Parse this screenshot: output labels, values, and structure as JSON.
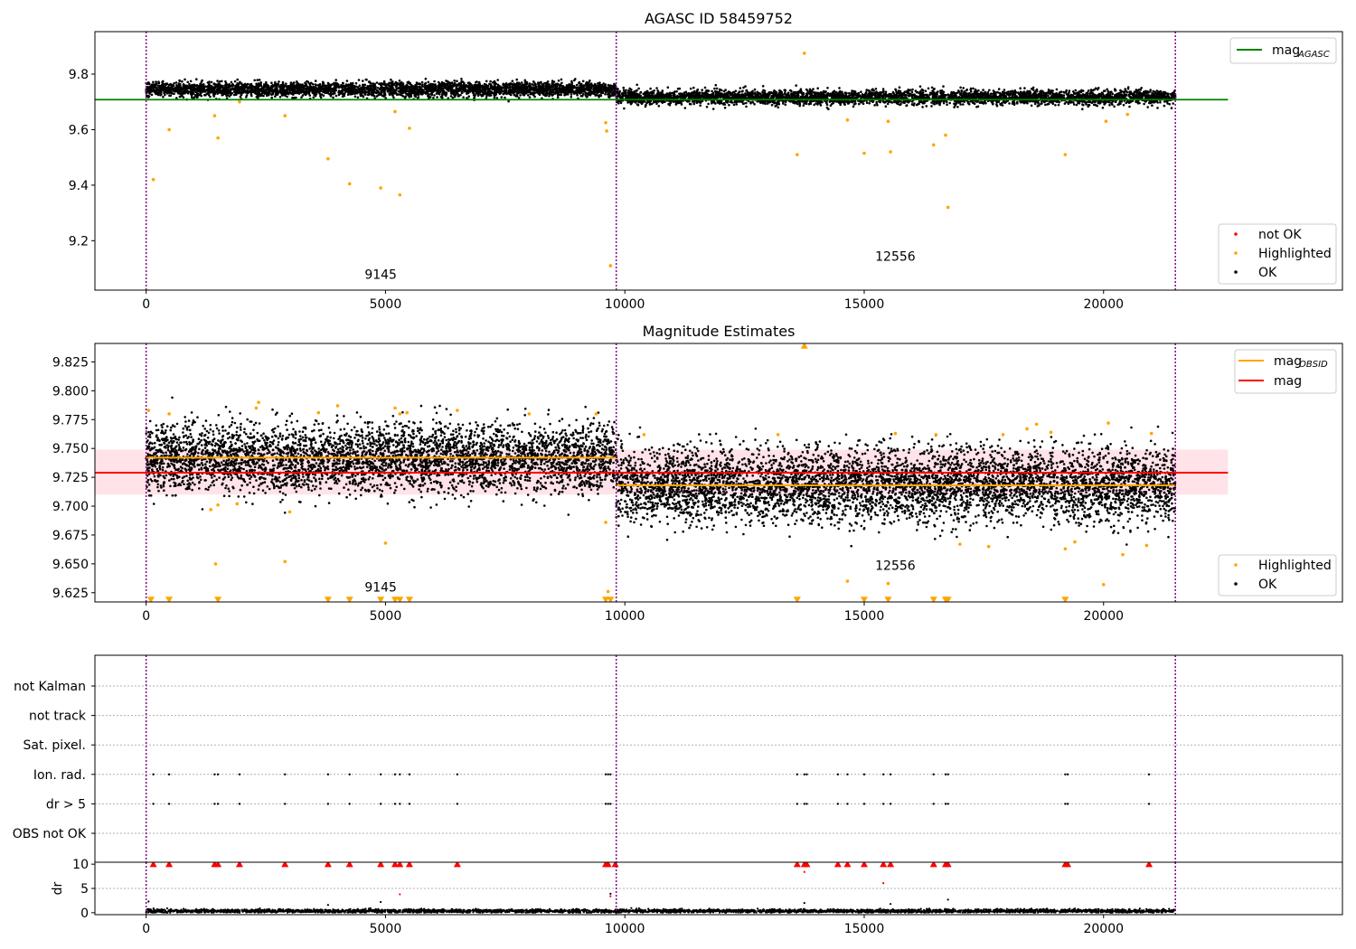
{
  "chart_data": [
    {
      "type": "scatter",
      "title": "AGASC ID 58459752",
      "xlabel": "",
      "ylabel": "",
      "xlim": [
        -1070,
        24990
      ],
      "ylim": [
        9.022,
        9.953
      ],
      "xticks": [
        0,
        5000,
        10000,
        15000,
        20000
      ],
      "xtick_labels": [
        "0",
        "5000",
        "10000",
        "15000",
        "20000"
      ],
      "yticks": [
        9.2,
        9.4,
        9.6,
        9.8
      ],
      "ytick_labels": [
        "9.2",
        "9.4",
        "9.6",
        "9.8"
      ],
      "obsid_boundaries": [
        0,
        9820,
        21500
      ],
      "obsid_labels": [
        {
          "text": "9145",
          "x": 4900,
          "y": 9.062
        },
        {
          "text": "12556",
          "x": 15650,
          "y": 9.128
        }
      ],
      "lines": [
        {
          "name": "mag_AGASC",
          "color": "#008000",
          "x": [
            -1070,
            22600
          ],
          "y": [
            9.708,
            9.708
          ]
        }
      ],
      "series": [
        {
          "name": "OK",
          "color": "#000000",
          "segments": [
            {
              "x": [
                0,
                9820
              ],
              "mean": 9.745,
              "spread": 0.022
            },
            {
              "x": [
                9820,
                21500
              ],
              "mean": 9.717,
              "spread": 0.022
            }
          ]
        },
        {
          "name": "Highlighted",
          "color": "#ffa500",
          "points": [
            [
              150,
              9.42
            ],
            [
              480,
              9.6
            ],
            [
              1430,
              9.65
            ],
            [
              1500,
              9.57
            ],
            [
              1950,
              9.7
            ],
            [
              2900,
              9.65
            ],
            [
              3800,
              9.495
            ],
            [
              4250,
              9.405
            ],
            [
              4900,
              9.39
            ],
            [
              5200,
              9.665
            ],
            [
              5300,
              9.365
            ],
            [
              5500,
              9.605
            ],
            [
              9600,
              9.625
            ],
            [
              9620,
              9.595
            ],
            [
              9700,
              9.11
            ],
            [
              13600,
              9.51
            ],
            [
              13750,
              9.875
            ],
            [
              14650,
              9.635
            ],
            [
              15000,
              9.515
            ],
            [
              15500,
              9.63
            ],
            [
              15550,
              9.52
            ],
            [
              16450,
              9.545
            ],
            [
              16700,
              9.58
            ],
            [
              16750,
              9.32
            ],
            [
              19200,
              9.51
            ],
            [
              20050,
              9.63
            ],
            [
              20500,
              9.655
            ]
          ]
        },
        {
          "name": "not OK",
          "color": "#ff0000",
          "points": []
        }
      ],
      "legend": [
        {
          "label": "mag",
          "sub": "AGASC",
          "kind": "line",
          "color": "#008000",
          "position": "top-right"
        },
        {
          "label": "not OK",
          "kind": "point",
          "color": "#ff0000",
          "position": "bottom-right"
        },
        {
          "label": "Highlighted",
          "kind": "point",
          "color": "#ffa500",
          "position": "bottom-right"
        },
        {
          "label": "OK",
          "kind": "point",
          "color": "#000000",
          "position": "bottom-right"
        }
      ]
    },
    {
      "type": "scatter",
      "title": "Magnitude Estimates",
      "xlabel": "",
      "ylabel": "",
      "xlim": [
        -1070,
        24990
      ],
      "ylim": [
        9.617,
        9.841
      ],
      "xticks": [
        0,
        5000,
        10000,
        15000,
        20000
      ],
      "xtick_labels": [
        "0",
        "5000",
        "10000",
        "15000",
        "20000"
      ],
      "yticks": [
        9.625,
        9.65,
        9.675,
        9.7,
        9.725,
        9.75,
        9.775,
        9.8,
        9.825
      ],
      "ytick_labels": [
        "9.625",
        "9.650",
        "9.675",
        "9.700",
        "9.725",
        "9.750",
        "9.775",
        "9.800",
        "9.825"
      ],
      "obsid_boundaries": [
        0,
        9820,
        21500
      ],
      "obsid_labels": [
        {
          "text": "9145",
          "x": 4900,
          "y": 9.626
        },
        {
          "text": "12556",
          "x": 15650,
          "y": 9.645
        }
      ],
      "band": {
        "color": "#ffc0cb",
        "opacity": 0.45,
        "x": [
          -1070,
          22600
        ],
        "y": [
          9.71,
          9.749
        ]
      },
      "lines": [
        {
          "name": "mag",
          "color": "#ff0000",
          "x": [
            -1070,
            22600
          ],
          "y": [
            9.729,
            9.729
          ]
        },
        {
          "name": "mag_OBSID 9145",
          "color": "#ffa500",
          "x": [
            0,
            9820
          ],
          "y": [
            9.742,
            9.742
          ]
        },
        {
          "name": "mag_OBSID 12556",
          "color": "#ffa500",
          "x": [
            9820,
            21500
          ],
          "y": [
            9.718,
            9.718
          ]
        }
      ],
      "series": [
        {
          "name": "OK",
          "color": "#000000",
          "segments": [
            {
              "x": [
                0,
                9820
              ],
              "mean": 9.742,
              "spread": 0.025
            },
            {
              "x": [
                9820,
                21500
              ],
              "mean": 9.718,
              "spread": 0.027
            }
          ]
        },
        {
          "name": "Highlighted",
          "color": "#ffa500",
          "points": [
            [
              50,
              9.783
            ],
            [
              480,
              9.78
            ],
            [
              1350,
              9.697
            ],
            [
              1450,
              9.65
            ],
            [
              1500,
              9.701
            ],
            [
              1900,
              9.702
            ],
            [
              2300,
              9.785
            ],
            [
              2350,
              9.79
            ],
            [
              2900,
              9.652
            ],
            [
              3000,
              9.695
            ],
            [
              3600,
              9.781
            ],
            [
              4000,
              9.787
            ],
            [
              5000,
              9.668
            ],
            [
              5200,
              9.785
            ],
            [
              5300,
              9.78
            ],
            [
              5450,
              9.781
            ],
            [
              6500,
              9.783
            ],
            [
              8000,
              9.78
            ],
            [
              9400,
              9.78
            ],
            [
              9600,
              9.686
            ],
            [
              9650,
              9.626
            ],
            [
              10400,
              9.762
            ],
            [
              13200,
              9.762
            ],
            [
              14650,
              9.635
            ],
            [
              15500,
              9.633
            ],
            [
              15650,
              9.763
            ],
            [
              16500,
              9.762
            ],
            [
              17000,
              9.667
            ],
            [
              17600,
              9.665
            ],
            [
              17900,
              9.762
            ],
            [
              18400,
              9.767
            ],
            [
              18600,
              9.771
            ],
            [
              18900,
              9.764
            ],
            [
              19200,
              9.663
            ],
            [
              19400,
              9.669
            ],
            [
              20100,
              9.772
            ],
            [
              20400,
              9.658
            ],
            [
              20900,
              9.666
            ],
            [
              21000,
              9.763
            ],
            [
              20000,
              9.632
            ]
          ]
        },
        {
          "name": "Highlighted below range",
          "color": "#ffa500",
          "marker": "triangle-down",
          "points": [
            [
              100,
              9.619
            ],
            [
              480,
              9.619
            ],
            [
              1500,
              9.619
            ],
            [
              3800,
              9.619
            ],
            [
              4250,
              9.619
            ],
            [
              4900,
              9.619
            ],
            [
              5200,
              9.619
            ],
            [
              5300,
              9.619
            ],
            [
              5500,
              9.619
            ],
            [
              9600,
              9.619
            ],
            [
              9700,
              9.619
            ],
            [
              13600,
              9.619
            ],
            [
              15000,
              9.619
            ],
            [
              15500,
              9.619
            ],
            [
              16450,
              9.619
            ],
            [
              16700,
              9.619
            ],
            [
              16750,
              9.619
            ],
            [
              19200,
              9.619
            ]
          ]
        },
        {
          "name": "Highlighted above range",
          "color": "#ffa500",
          "marker": "triangle-up",
          "points": [
            [
              13750,
              9.839
            ]
          ]
        }
      ],
      "legend": [
        {
          "label": "mag",
          "sub": "OBSID",
          "kind": "line",
          "color": "#ffa500",
          "position": "top-right"
        },
        {
          "label": "mag",
          "kind": "line",
          "color": "#ff0000",
          "position": "top-right"
        },
        {
          "label": "Highlighted",
          "kind": "point",
          "color": "#ffa500",
          "position": "bottom-right"
        },
        {
          "label": "OK",
          "kind": "point",
          "color": "#000000",
          "position": "bottom-right"
        }
      ]
    },
    {
      "type": "scatter",
      "title": "",
      "xlabel": "",
      "ylabel": "",
      "xlim": [
        -1070,
        24990
      ],
      "categories": [
        "not Kalman",
        "not track",
        "Sat. pixel.",
        "Ion. rad.",
        "dr > 5",
        "OBS not OK"
      ],
      "grid": true,
      "flag_points": {
        "Ion. rad.": [
          150,
          480,
          1430,
          1500,
          1950,
          2900,
          3800,
          4250,
          4900,
          5200,
          5300,
          5500,
          6500,
          9600,
          9650,
          9700,
          13600,
          13750,
          13800,
          14450,
          14650,
          15000,
          15400,
          15550,
          16450,
          16700,
          16750,
          19200,
          19250,
          20950
        ],
        "dr > 5": [
          150,
          480,
          1430,
          1500,
          1950,
          2900,
          3800,
          4250,
          4900,
          5200,
          5300,
          5500,
          6500,
          9600,
          9650,
          9700,
          13600,
          13750,
          13800,
          14450,
          14650,
          15000,
          15400,
          15550,
          16450,
          16700,
          16750,
          19200,
          19250,
          20950
        ]
      },
      "obsid_boundaries": [
        0,
        9820,
        21500
      ]
    },
    {
      "type": "scatter",
      "title": "",
      "xlabel": "",
      "ylabel": "dr",
      "xlim": [
        -1070,
        24990
      ],
      "ylim": [
        -0.4,
        10.4
      ],
      "yticks": [
        0,
        5,
        10
      ],
      "ytick_labels": [
        "0",
        "5",
        "10"
      ],
      "xticks": [
        0,
        5000,
        10000,
        15000,
        20000
      ],
      "xtick_labels": [
        "0",
        "5000",
        "10000",
        "15000",
        "20000"
      ],
      "obsid_boundaries": [
        0,
        9820,
        21500
      ],
      "series": [
        {
          "name": "OK",
          "color": "#000000",
          "segments": [
            {
              "x": [
                0,
                21500
              ],
              "mean": 0.35,
              "spread": 0.3
            }
          ],
          "extra": [
            [
              50,
              2.3
            ],
            [
              3800,
              1.6
            ],
            [
              4900,
              2.2
            ],
            [
              9700,
              3.9
            ],
            [
              13750,
              2.0
            ],
            [
              16750,
              2.7
            ],
            [
              15550,
              1.8
            ]
          ]
        },
        {
          "name": "not OK",
          "color": "#ff0000",
          "marker": "triangle-up",
          "points": [
            [
              150,
              10
            ],
            [
              480,
              10
            ],
            [
              1430,
              10
            ],
            [
              1500,
              10
            ],
            [
              1950,
              10
            ],
            [
              2900,
              10
            ],
            [
              3800,
              10
            ],
            [
              4250,
              10
            ],
            [
              4900,
              10
            ],
            [
              5200,
              10
            ],
            [
              5300,
              10
            ],
            [
              5500,
              10
            ],
            [
              6500,
              10
            ],
            [
              9600,
              10
            ],
            [
              9650,
              10
            ],
            [
              9800,
              10
            ],
            [
              13600,
              10
            ],
            [
              13750,
              10
            ],
            [
              13800,
              10
            ],
            [
              14450,
              10
            ],
            [
              14650,
              10
            ],
            [
              15000,
              10
            ],
            [
              15400,
              10
            ],
            [
              15550,
              10
            ],
            [
              16450,
              10
            ],
            [
              16700,
              10
            ],
            [
              16750,
              10
            ],
            [
              19200,
              10
            ],
            [
              19250,
              10
            ],
            [
              20950,
              10
            ]
          ]
        },
        {
          "name": "not OK (dot)",
          "color": "#ff0000",
          "points": [
            [
              5300,
              3.8
            ],
            [
              9700,
              3.4
            ],
            [
              13750,
              8.4
            ],
            [
              15400,
              6.1
            ]
          ]
        }
      ]
    }
  ]
}
